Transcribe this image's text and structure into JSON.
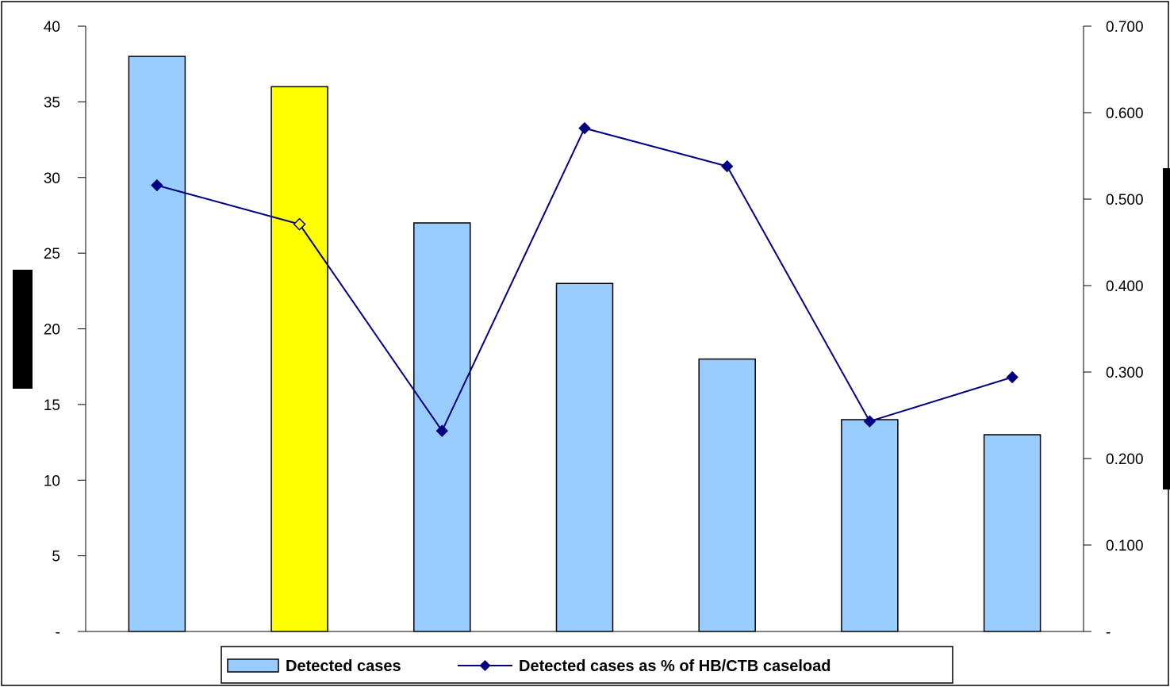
{
  "chart_data": {
    "type": "bar",
    "categories": [
      "",
      "",
      "",
      "",
      "",
      "",
      ""
    ],
    "series": [
      {
        "name": "Detected cases",
        "type": "bar",
        "axis": "left",
        "values": [
          38,
          36,
          27,
          23,
          18,
          14,
          13
        ],
        "highlight_index": 1
      },
      {
        "name": "Detected cases as % of HB/CTB caseload",
        "type": "line",
        "axis": "right",
        "values": [
          0.516,
          0.471,
          0.232,
          0.582,
          0.538,
          0.243,
          0.294
        ]
      }
    ],
    "left_axis": {
      "ylim": [
        0,
        40
      ],
      "ticks": [
        0,
        5,
        10,
        15,
        20,
        25,
        30,
        35,
        40
      ],
      "tick_labels": [
        "-",
        "5",
        "10",
        "15",
        "20",
        "25",
        "30",
        "35",
        "40"
      ]
    },
    "right_axis": {
      "ylim": [
        0,
        0.7
      ],
      "ticks": [
        0,
        0.1,
        0.2,
        0.3,
        0.4,
        0.5,
        0.6,
        0.7
      ],
      "tick_labels": [
        "-",
        "0.100",
        "0.200",
        "0.300",
        "0.400",
        "0.500",
        "0.600",
        "0.700"
      ]
    },
    "grid": false,
    "legend_position": "bottom",
    "colors": {
      "bar": "#99ccff",
      "bar_highlight": "#ffff00",
      "bar_stroke": "#000000",
      "line": "#000080",
      "axis": "#000000"
    }
  }
}
